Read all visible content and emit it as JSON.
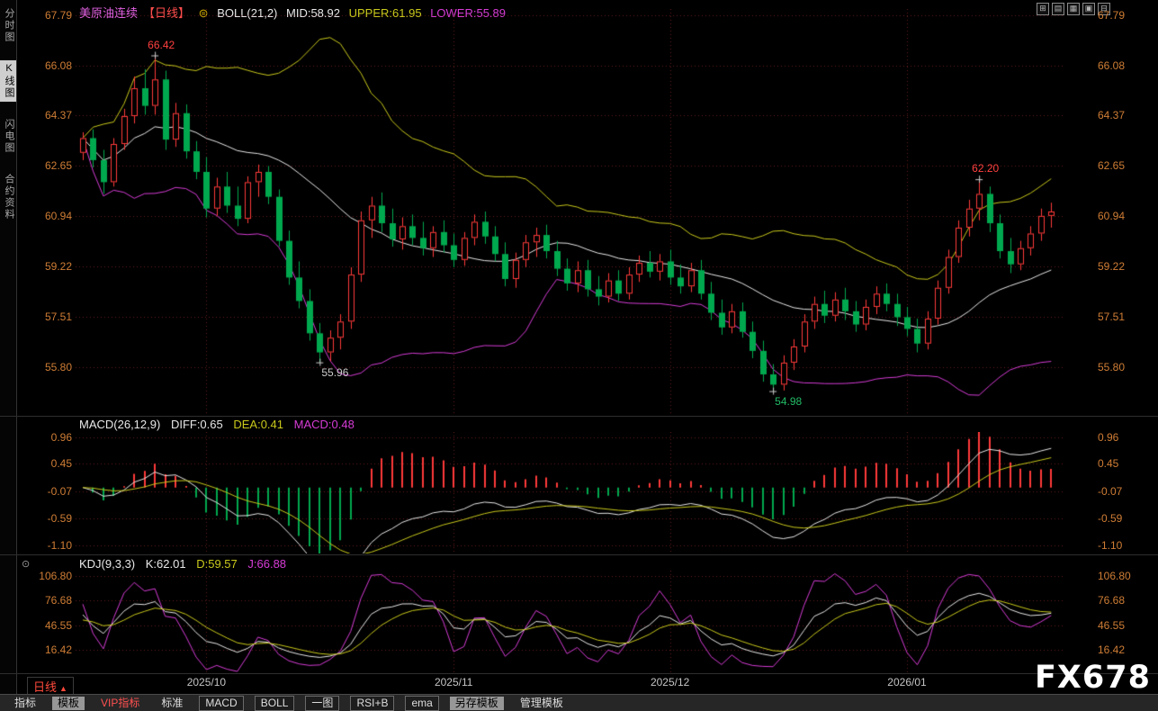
{
  "header": {
    "symbol": "美原油连续",
    "period": "【日线】",
    "settings_icon": "⊜",
    "indicator_name": "BOLL(21,2)",
    "mid": "MID:58.92",
    "upper": "UPPER:61.95",
    "lower": "LOWER:55.89"
  },
  "sidebar": {
    "items": [
      {
        "label": "分时图",
        "name": "time-share-chart",
        "active": false
      },
      {
        "label": "K线图",
        "name": "kline-chart",
        "active": true
      },
      {
        "label": "闪电图",
        "name": "tick-chart",
        "active": false
      },
      {
        "label": "合约资料",
        "name": "contract-info",
        "active": false
      }
    ]
  },
  "window_icons": [
    {
      "glyph": "⊞",
      "name": "layout-grid-icon"
    },
    {
      "glyph": "▤",
      "name": "layout-rows-icon"
    },
    {
      "glyph": "▦",
      "name": "layout-quad-icon"
    },
    {
      "glyph": "▣",
      "name": "layout-single-icon"
    },
    {
      "glyph": "⊟",
      "name": "layout-split-icon"
    }
  ],
  "macd_header": {
    "name": "MACD(26,12,9)",
    "diff": "DIFF:0.65",
    "dea": "DEA:0.41",
    "macd": "MACD:0.48"
  },
  "kdj_header": {
    "name": "KDJ(9,3,3)",
    "k": "K:62.01",
    "d": "D:59.57",
    "j": "J:66.88",
    "icon": "⊙"
  },
  "price_axis": [
    "67.79",
    "66.08",
    "64.37",
    "62.65",
    "60.94",
    "59.22",
    "57.51",
    "55.80"
  ],
  "macd_axis": [
    "0.96",
    "0.45",
    "-0.07",
    "-0.59",
    "-1.10"
  ],
  "kdj_axis": [
    "106.80",
    "76.68",
    "46.55",
    "16.42"
  ],
  "period_selector": {
    "label": "日线",
    "arrow": "▲"
  },
  "watermark": "FX678",
  "toolbar": {
    "items": [
      {
        "label": "指标",
        "name": "indicators",
        "style": "plain"
      },
      {
        "label": "模板",
        "name": "templates",
        "style": "active"
      },
      {
        "label": "VIP指标",
        "name": "vip-indicators",
        "style": "vip"
      },
      {
        "label": "标准",
        "name": "standard",
        "style": "plain"
      },
      {
        "label": "MACD",
        "name": "macd",
        "style": "button"
      },
      {
        "label": "BOLL",
        "name": "boll",
        "style": "button"
      },
      {
        "label": "一图",
        "name": "one-chart",
        "style": "button"
      },
      {
        "label": "RSI+B",
        "name": "rsi-b",
        "style": "button"
      },
      {
        "label": "ema",
        "name": "ema",
        "style": "button"
      },
      {
        "label": "另存模板",
        "name": "save-template",
        "style": "active"
      },
      {
        "label": "管理模板",
        "name": "manage-template",
        "style": "plain"
      }
    ]
  },
  "colors": {
    "up": "#ff3a3a",
    "down": "#00a84e",
    "boll_mid": "#e8e8e8",
    "boll_upper": "#c9c91c",
    "boll_lower": "#d63cd6",
    "grid": "#641e1e",
    "axis_text": "#cf7d35",
    "diff": "#e8e8e8",
    "dea": "#c9c91c",
    "macd_bar_pos": "#ff3a3a",
    "macd_bar_neg": "#00a84e",
    "k": "#e8e8e8",
    "d": "#c9c91c",
    "j": "#d63cd6",
    "symbol": "#e060e0",
    "period_tag": "#ff4d4d",
    "marker": "#cccccc"
  },
  "chart_data": {
    "type": "candlestick",
    "symbol": "美原油连续",
    "period": "日线",
    "indicators": {
      "boll": {
        "n": 21,
        "k": 2
      },
      "macd": {
        "fast": 12,
        "slow": 26,
        "signal": 9
      },
      "kdj": {
        "n": 9,
        "m1": 3,
        "m2": 3
      }
    },
    "price_ticks": [
      67.79,
      66.08,
      64.37,
      62.65,
      60.94,
      59.22,
      57.51,
      55.8
    ],
    "macd_ticks": [
      0.96,
      0.45,
      -0.07,
      -0.59,
      -1.1
    ],
    "kdj_ticks": [
      106.8,
      76.68,
      46.55,
      16.42
    ],
    "x_axis": [
      {
        "label": "2025/10",
        "index": 12
      },
      {
        "label": "2025/11",
        "index": 36
      },
      {
        "label": "2025/12",
        "index": 57
      },
      {
        "label": "2026/01",
        "index": 80
      }
    ],
    "annotations": [
      {
        "text": "66.42",
        "index": 7,
        "price": 66.42,
        "side": "high",
        "color": "#ff4040"
      },
      {
        "text": "55.96",
        "index": 23,
        "price": 55.96,
        "side": "low",
        "color": "#cccccc"
      },
      {
        "text": "54.98",
        "index": 67,
        "price": 54.98,
        "side": "low",
        "color": "#22bb66"
      },
      {
        "text": "62.20",
        "index": 87,
        "price": 62.2,
        "side": "high",
        "color": "#ff4040"
      }
    ],
    "ohlc": [
      [
        63.1,
        63.8,
        62.85,
        63.6
      ],
      [
        63.6,
        63.9,
        62.6,
        62.85
      ],
      [
        62.85,
        63.2,
        61.7,
        62.1
      ],
      [
        62.1,
        63.6,
        61.95,
        63.4
      ],
      [
        63.4,
        64.6,
        63.2,
        64.35
      ],
      [
        64.35,
        65.7,
        64.1,
        65.3
      ],
      [
        65.3,
        65.95,
        64.4,
        64.7
      ],
      [
        64.7,
        66.42,
        64.4,
        65.6
      ],
      [
        65.6,
        65.9,
        63.2,
        63.55
      ],
      [
        63.55,
        64.8,
        63.3,
        64.45
      ],
      [
        64.45,
        64.75,
        62.9,
        63.15
      ],
      [
        63.15,
        63.5,
        62.2,
        62.45
      ],
      [
        62.45,
        62.95,
        60.9,
        61.2
      ],
      [
        61.2,
        62.25,
        60.95,
        61.95
      ],
      [
        61.95,
        62.45,
        61.05,
        61.3
      ],
      [
        61.3,
        61.95,
        60.6,
        60.85
      ],
      [
        60.85,
        62.3,
        60.7,
        62.1
      ],
      [
        62.1,
        62.7,
        61.6,
        62.45
      ],
      [
        62.45,
        62.65,
        61.35,
        61.6
      ],
      [
        61.6,
        61.85,
        59.9,
        60.1
      ],
      [
        60.1,
        60.45,
        58.6,
        58.85
      ],
      [
        58.85,
        59.4,
        57.8,
        58.05
      ],
      [
        58.05,
        58.45,
        56.7,
        56.95
      ],
      [
        56.95,
        57.3,
        55.96,
        56.3
      ],
      [
        56.3,
        57.05,
        56.0,
        56.8
      ],
      [
        56.8,
        57.6,
        56.4,
        57.35
      ],
      [
        57.35,
        59.2,
        57.1,
        58.95
      ],
      [
        58.95,
        61.1,
        58.7,
        60.8
      ],
      [
        60.8,
        61.6,
        60.2,
        61.3
      ],
      [
        61.3,
        61.75,
        60.4,
        60.7
      ],
      [
        60.7,
        61.2,
        59.9,
        60.15
      ],
      [
        60.15,
        60.9,
        59.8,
        60.6
      ],
      [
        60.6,
        61.0,
        59.95,
        60.2
      ],
      [
        60.2,
        60.75,
        59.6,
        59.85
      ],
      [
        59.85,
        60.6,
        59.55,
        60.4
      ],
      [
        60.4,
        60.8,
        59.7,
        59.95
      ],
      [
        59.95,
        60.35,
        59.2,
        59.45
      ],
      [
        59.45,
        60.4,
        59.25,
        60.2
      ],
      [
        60.2,
        61.0,
        59.95,
        60.75
      ],
      [
        60.75,
        61.1,
        60.0,
        60.25
      ],
      [
        60.25,
        60.6,
        59.4,
        59.65
      ],
      [
        59.65,
        60.05,
        58.55,
        58.8
      ],
      [
        58.8,
        59.7,
        58.5,
        59.45
      ],
      [
        59.45,
        60.3,
        59.2,
        60.05
      ],
      [
        60.05,
        60.55,
        59.55,
        60.3
      ],
      [
        60.3,
        60.65,
        59.5,
        59.75
      ],
      [
        59.75,
        60.1,
        58.9,
        59.15
      ],
      [
        59.15,
        59.5,
        58.4,
        58.65
      ],
      [
        58.65,
        59.4,
        58.35,
        59.1
      ],
      [
        59.1,
        59.45,
        58.2,
        58.45
      ],
      [
        58.45,
        58.9,
        57.9,
        58.2
      ],
      [
        58.2,
        59.0,
        58.0,
        58.75
      ],
      [
        58.75,
        59.1,
        58.05,
        58.3
      ],
      [
        58.3,
        59.2,
        58.1,
        58.95
      ],
      [
        58.95,
        59.6,
        58.7,
        59.35
      ],
      [
        59.35,
        59.75,
        58.85,
        59.05
      ],
      [
        59.05,
        59.65,
        58.75,
        59.4
      ],
      [
        59.4,
        59.8,
        58.6,
        58.85
      ],
      [
        58.85,
        59.3,
        58.3,
        58.55
      ],
      [
        58.55,
        59.35,
        58.35,
        59.1
      ],
      [
        59.1,
        59.45,
        58.1,
        58.3
      ],
      [
        58.3,
        58.7,
        57.4,
        57.65
      ],
      [
        57.65,
        58.1,
        56.9,
        57.15
      ],
      [
        57.15,
        57.95,
        56.95,
        57.7
      ],
      [
        57.7,
        58.0,
        56.8,
        57.0
      ],
      [
        57.0,
        57.35,
        56.1,
        56.35
      ],
      [
        56.35,
        56.7,
        55.3,
        55.55
      ],
      [
        55.55,
        55.9,
        54.98,
        55.2
      ],
      [
        55.2,
        56.2,
        55.0,
        55.95
      ],
      [
        55.95,
        56.75,
        55.7,
        56.5
      ],
      [
        56.5,
        57.6,
        56.3,
        57.35
      ],
      [
        57.35,
        58.2,
        57.1,
        57.95
      ],
      [
        57.95,
        58.4,
        57.3,
        57.55
      ],
      [
        57.55,
        58.35,
        57.35,
        58.1
      ],
      [
        58.1,
        58.5,
        57.4,
        57.7
      ],
      [
        57.7,
        58.05,
        57.0,
        57.25
      ],
      [
        57.25,
        58.1,
        57.05,
        57.85
      ],
      [
        57.85,
        58.55,
        57.6,
        58.3
      ],
      [
        58.3,
        58.65,
        57.7,
        57.95
      ],
      [
        57.95,
        58.3,
        57.2,
        57.5
      ],
      [
        57.5,
        57.85,
        56.85,
        57.1
      ],
      [
        57.1,
        57.45,
        56.3,
        56.6
      ],
      [
        56.6,
        57.7,
        56.4,
        57.45
      ],
      [
        57.45,
        58.75,
        57.25,
        58.5
      ],
      [
        58.5,
        59.8,
        58.3,
        59.55
      ],
      [
        59.55,
        60.8,
        59.35,
        60.55
      ],
      [
        60.55,
        61.5,
        60.25,
        61.2
      ],
      [
        61.2,
        62.2,
        60.8,
        61.7
      ],
      [
        61.7,
        61.95,
        60.4,
        60.7
      ],
      [
        60.7,
        61.0,
        59.5,
        59.75
      ],
      [
        59.75,
        60.2,
        59.0,
        59.3
      ],
      [
        59.3,
        60.1,
        59.1,
        59.85
      ],
      [
        59.85,
        60.6,
        59.6,
        60.35
      ],
      [
        60.35,
        61.2,
        60.1,
        60.95
      ],
      [
        60.95,
        61.4,
        60.55,
        61.1
      ]
    ]
  }
}
